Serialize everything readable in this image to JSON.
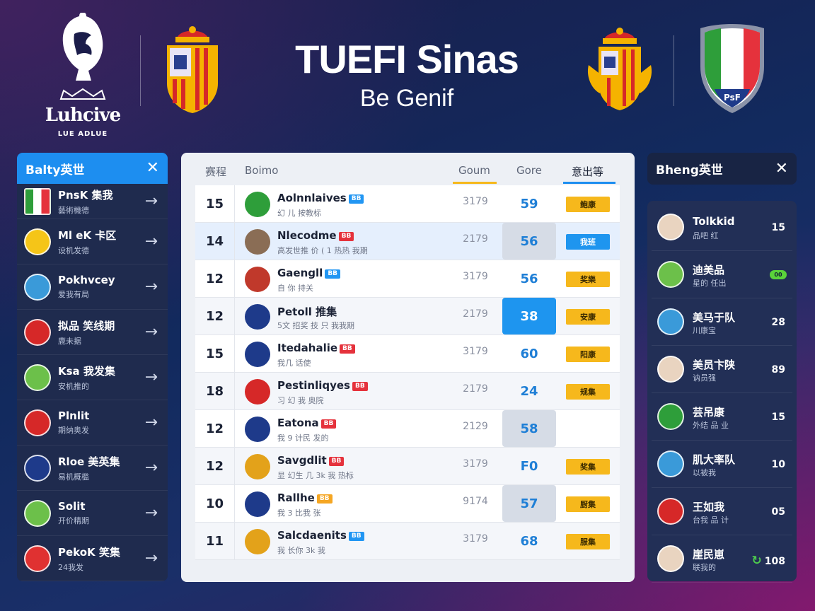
{
  "header": {
    "league_name": "Luhcive",
    "league_sub": "LUE ADLUE",
    "title": "TUEFI Sinas",
    "subtitle": "Be Genif",
    "right_crest_text": "PsF"
  },
  "left_panel": {
    "title": "Balty英世",
    "items": [
      {
        "name": "PnsK 集我",
        "sub": "藝術機德",
        "avatar_color": "#c0392b",
        "avatar_text": "",
        "icon": "italy-flag-icon"
      },
      {
        "name": "Ml eK 卡区",
        "sub": "设机发德",
        "avatar_color": "#f5c518",
        "avatar_text": "",
        "icon": "player-avatar-icon"
      },
      {
        "name": "Pokhvcey",
        "sub": "爱我有局",
        "avatar_color": "#3a9ad9",
        "avatar_text": "",
        "icon": "team-badge-icon"
      },
      {
        "name": "拟品 笑线期",
        "sub": "鹿未据",
        "avatar_color": "#d62828",
        "avatar_text": "",
        "icon": "team-badge-icon"
      },
      {
        "name": "Ksa 我发集",
        "sub": "安机推的",
        "avatar_color": "#6cc04a",
        "avatar_text": "",
        "icon": "team-badge-icon"
      },
      {
        "name": "Plnlit",
        "sub": "期纳奥发",
        "avatar_color": "#d62828",
        "avatar_text": "",
        "icon": "team-badge-icon"
      },
      {
        "name": "Rloe 美英集",
        "sub": "易机概槛",
        "avatar_color": "#1e3a8a",
        "avatar_text": "",
        "icon": "player-avatar-icon"
      },
      {
        "name": "Solit",
        "sub": "开价精期",
        "avatar_color": "#6cc04a",
        "avatar_text": "",
        "icon": "team-badge-icon"
      },
      {
        "name": "PekoK 笑集",
        "sub": "24我发",
        "avatar_color": "#e03131",
        "avatar_text": "",
        "icon": "team-badge-icon"
      }
    ]
  },
  "table": {
    "columns": [
      "赛程",
      "Boimo",
      "Goum",
      "Gore",
      "意出等"
    ],
    "rows": [
      {
        "rank": "15",
        "name": "Aolnnlaives",
        "tag": "BB",
        "tag_color": "blue",
        "sub": "幻 儿 按教标",
        "goals": "3179",
        "score": "59",
        "status": "鲍康",
        "icon_color": "#2e9e3a",
        "score_style": "plain",
        "status_style": "yellow",
        "row_style": "plain"
      },
      {
        "rank": "14",
        "name": "Nlecodme",
        "tag": "BB",
        "tag_color": "red",
        "sub": "高发世推 价 ( 1 热热 我期",
        "goals": "2179",
        "score": "56",
        "status": "我班",
        "icon_color": "#8a6d55",
        "score_style": "grey",
        "status_style": "blue",
        "row_style": "hl"
      },
      {
        "rank": "12",
        "name": "Gaengll",
        "tag": "BB",
        "tag_color": "blue",
        "sub": "自 你 持关",
        "goals": "3179",
        "score": "56",
        "status": "奖樂",
        "icon_color": "#c0392b",
        "score_style": "plain",
        "status_style": "yellow",
        "row_style": "plain"
      },
      {
        "rank": "12",
        "name": "Petoll 推集",
        "tag": "",
        "tag_color": "",
        "sub": "5文 招奖 技 只 我我期",
        "goals": "2179",
        "score": "38",
        "status": "安康",
        "icon_color": "#1e3a8a",
        "score_style": "blue",
        "status_style": "yellow",
        "row_style": "alt"
      },
      {
        "rank": "15",
        "name": "Itedahalie",
        "tag": "BB",
        "tag_color": "red",
        "sub": "我几 话使",
        "goals": "3179",
        "score": "60",
        "status": "阳康",
        "icon_color": "#1e3a8a",
        "score_style": "plain",
        "status_style": "yellow",
        "row_style": "plain"
      },
      {
        "rank": "18",
        "name": "Pestinliqyes",
        "tag": "BB",
        "tag_color": "red",
        "sub": "习 幻 我 奥院",
        "goals": "2179",
        "score": "24",
        "status": "规集",
        "icon_color": "#d62828",
        "score_style": "plain",
        "status_style": "yellow",
        "row_style": "alt"
      },
      {
        "rank": "12",
        "name": "Eatona",
        "tag": "BB",
        "tag_color": "red",
        "sub": "我 9 计民 发的",
        "goals": "2129",
        "score": "58",
        "status": "",
        "icon_color": "#1e3a8a",
        "score_style": "grey",
        "status_style": "none",
        "row_style": "plain"
      },
      {
        "rank": "12",
        "name": "Savgdlit",
        "tag": "BB",
        "tag_color": "red",
        "sub": "显 幻生 几 3k 我 热标",
        "goals": "3179",
        "score": "F0",
        "status": "奖集",
        "icon_color": "#e3a21a",
        "score_style": "plain",
        "status_style": "yellow",
        "row_style": "alt"
      },
      {
        "rank": "10",
        "name": "Rallhe",
        "tag": "BB",
        "tag_color": "orange",
        "sub": "我 3 比我 张",
        "goals": "9174",
        "score": "57",
        "status": "厨集",
        "icon_color": "#1e3a8a",
        "score_style": "grey",
        "status_style": "yellow",
        "row_style": "plain"
      },
      {
        "rank": "11",
        "name": "Salcdaenits",
        "tag": "BB",
        "tag_color": "blue",
        "sub": "我 长你 3k 我",
        "goals": "3179",
        "score": "68",
        "status": "服集",
        "icon_color": "#e3a21a",
        "score_style": "plain",
        "status_style": "yellow",
        "row_style": "alt"
      }
    ]
  },
  "right_panel": {
    "title": "Bheng英世",
    "items": [
      {
        "name": "Tolkkid",
        "sub": "品吧 红",
        "value": "15",
        "avatar_color": "#e9d4c0",
        "value_style": "text"
      },
      {
        "name": "迪美品",
        "sub": "星的 任出",
        "value": "00",
        "avatar_color": "#6cc04a",
        "value_style": "badge"
      },
      {
        "name": "美马于队",
        "sub": "川康宝",
        "value": "28",
        "avatar_color": "#3a9ad9",
        "value_style": "text"
      },
      {
        "name": "美员卞陕",
        "sub": "讷员强",
        "value": "89",
        "avatar_color": "#e9d4c0",
        "value_style": "text"
      },
      {
        "name": "芸吊康",
        "sub": "外结 品 业",
        "value": "15",
        "avatar_color": "#2e9e3a",
        "value_style": "text"
      },
      {
        "name": "肌大率队",
        "sub": "以被我",
        "value": "10",
        "avatar_color": "#3a9ad9",
        "value_style": "text"
      },
      {
        "name": "王如我",
        "sub": "台我 品 计",
        "value": "05",
        "avatar_color": "#d62828",
        "value_style": "text"
      },
      {
        "name": "崖民崽",
        "sub": "联我的",
        "value": "108",
        "avatar_color": "#e9d4c0",
        "value_style": "refresh"
      }
    ]
  },
  "colors": {
    "accent": "#1d8ef0",
    "status_yellow": "#f6b81c",
    "panel_dark": "#1f2b4e",
    "score_blue": "#1f7fd6"
  }
}
